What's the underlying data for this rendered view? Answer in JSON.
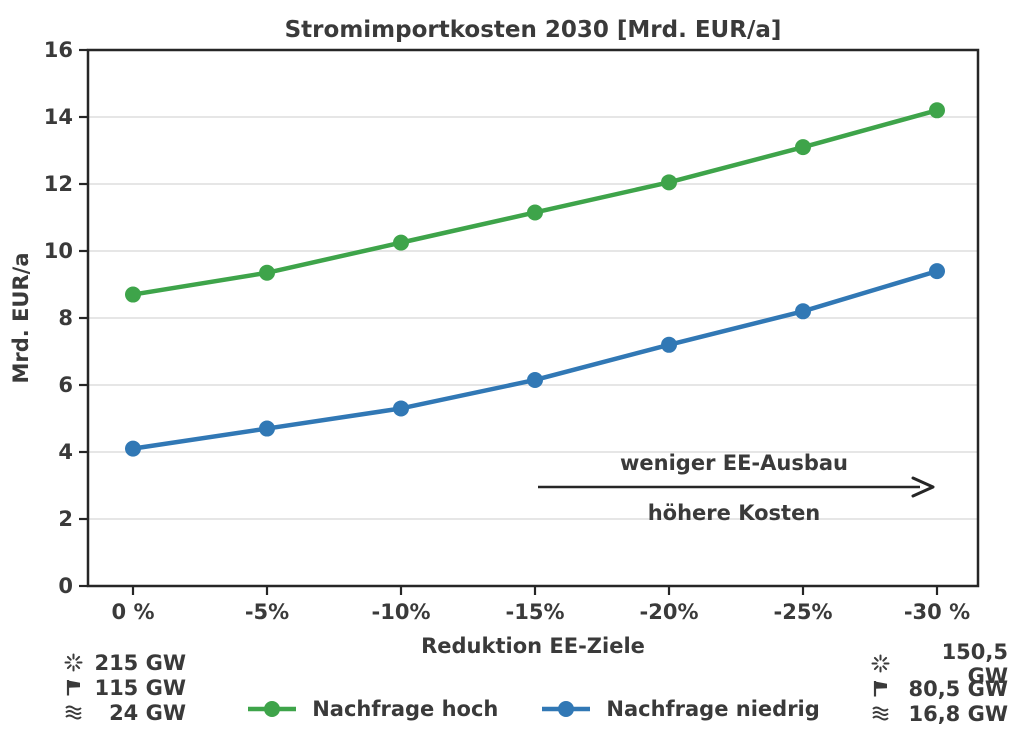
{
  "chart_data": {
    "type": "line",
    "title": "Stromimportkosten 2030 [Mrd. EUR/a]",
    "xlabel": "Reduktion EE-Ziele",
    "ylabel": "Mrd. EUR/a",
    "categories": [
      "0 %",
      "-5%",
      "-10%",
      "-15%",
      "-20%",
      "-25%",
      "-30 %"
    ],
    "series": [
      {
        "name": "Nachfrage hoch",
        "color": "#3ea44a",
        "values": [
          8.7,
          9.35,
          10.25,
          11.15,
          12.05,
          13.1,
          14.2
        ]
      },
      {
        "name": "Nachfrage niedrig",
        "color": "#3178b5",
        "values": [
          4.1,
          4.7,
          5.3,
          6.15,
          7.2,
          8.2,
          9.4
        ]
      }
    ],
    "ylim": [
      0,
      16
    ],
    "yticks": [
      0,
      2,
      4,
      6,
      8,
      10,
      12,
      14,
      16
    ],
    "grid": "horizontal",
    "legend_position": "bottom",
    "annotation": {
      "line1": "weniger EE-Ausbau",
      "line2": "höhere Kosten"
    }
  },
  "capacity_notes": {
    "left": [
      {
        "icon": "sun",
        "value": "215 GW"
      },
      {
        "icon": "flag",
        "value": "115 GW"
      },
      {
        "icon": "waves",
        "value": "24 GW"
      }
    ],
    "right": [
      {
        "icon": "sun",
        "value": "150,5 GW"
      },
      {
        "icon": "flag",
        "value": "80,5 GW"
      },
      {
        "icon": "waves",
        "value": "16,8 GW"
      }
    ]
  },
  "colors": {
    "text": "#3a3a3a",
    "axis": "#262626",
    "grid": "#e3e3e3",
    "background": "#ffffff"
  }
}
